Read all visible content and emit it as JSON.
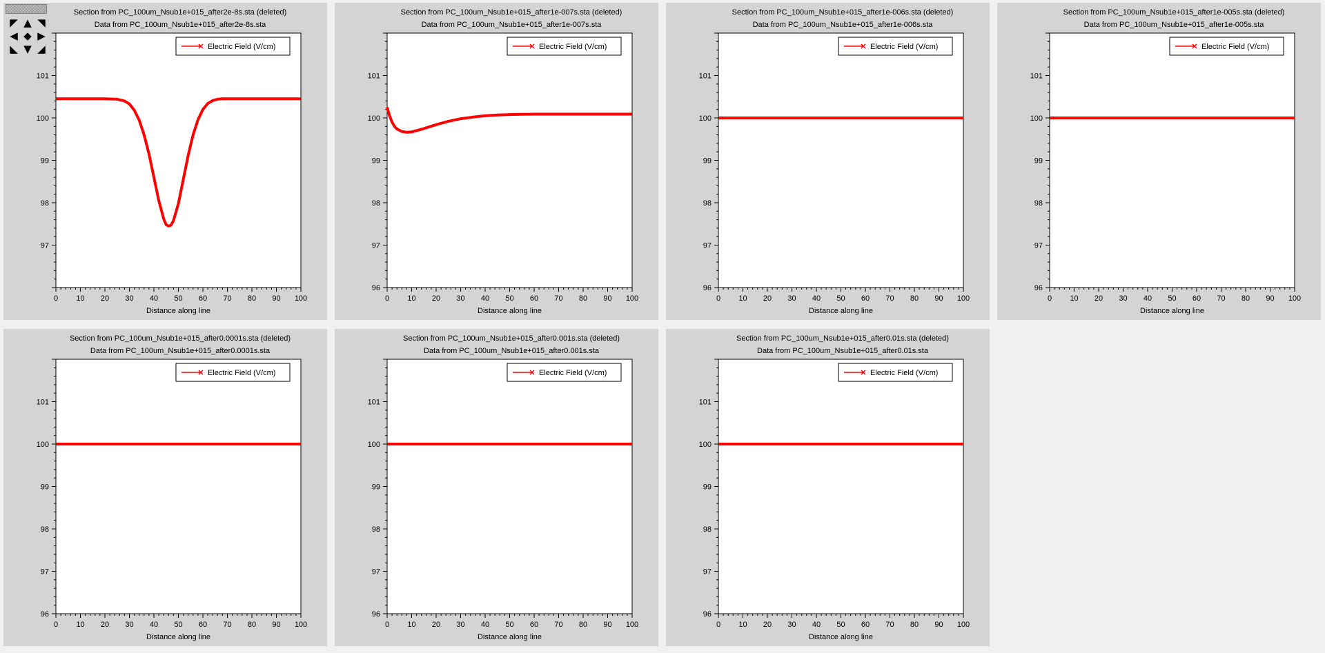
{
  "chart_data": [
    {
      "type": "line",
      "title": "Section from PC_100um_Nsub1e+015_after2e-8s.sta (deleted)",
      "subtitle": "Data from PC_100um_Nsub1e+015_after2e-8s.sta",
      "xlabel": "Distance along line",
      "ylabel": "",
      "xlim": [
        0,
        100
      ],
      "ylim": [
        96,
        102
      ],
      "xticks": [
        0,
        10,
        20,
        30,
        40,
        50,
        60,
        70,
        80,
        90,
        100
      ],
      "yticks": [
        97,
        98,
        99,
        100,
        101
      ],
      "legend": "top-right",
      "series": [
        {
          "name": "Electric Field (V/cm)",
          "color": "#ff0000",
          "x": [
            0,
            10,
            20,
            25,
            28,
            30,
            32,
            34,
            36,
            38,
            40,
            42,
            44,
            45,
            46,
            47,
            48,
            50,
            52,
            54,
            56,
            58,
            60,
            62,
            64,
            66,
            68,
            70,
            75,
            80,
            90,
            100
          ],
          "y": [
            100.45,
            100.45,
            100.45,
            100.44,
            100.4,
            100.33,
            100.18,
            99.95,
            99.6,
            99.15,
            98.6,
            98.05,
            97.62,
            97.48,
            97.45,
            97.47,
            97.58,
            97.98,
            98.55,
            99.12,
            99.6,
            99.96,
            100.2,
            100.34,
            100.41,
            100.44,
            100.45,
            100.45,
            100.45,
            100.45,
            100.45,
            100.45
          ]
        }
      ]
    },
    {
      "type": "line",
      "title": "Section from PC_100um_Nsub1e+015_after1e-007s.sta (deleted)",
      "subtitle": "Data from PC_100um_Nsub1e+015_after1e-007s.sta",
      "xlabel": "Distance along line",
      "ylabel": "",
      "xlim": [
        0,
        100
      ],
      "ylim": [
        96,
        102
      ],
      "xticks": [
        0,
        10,
        20,
        30,
        40,
        50,
        60,
        70,
        80,
        90,
        100
      ],
      "yticks": [
        96,
        97,
        98,
        99,
        100,
        101
      ],
      "legend": "top-right",
      "series": [
        {
          "name": "Electric Field (V/cm)",
          "color": "#ff0000",
          "x": [
            0,
            1,
            2,
            3,
            4,
            6,
            8,
            10,
            12,
            15,
            20,
            25,
            30,
            35,
            40,
            45,
            50,
            60,
            70,
            80,
            90,
            100
          ],
          "y": [
            100.25,
            100.05,
            99.9,
            99.8,
            99.74,
            99.68,
            99.66,
            99.67,
            99.7,
            99.75,
            99.84,
            99.92,
            99.98,
            100.02,
            100.05,
            100.07,
            100.08,
            100.09,
            100.09,
            100.09,
            100.09,
            100.09
          ]
        }
      ]
    },
    {
      "type": "line",
      "title": "Section from PC_100um_Nsub1e+015_after1e-006s.sta (deleted)",
      "subtitle": "Data from PC_100um_Nsub1e+015_after1e-006s.sta",
      "xlabel": "Distance along line",
      "ylabel": "",
      "xlim": [
        0,
        100
      ],
      "ylim": [
        96,
        102
      ],
      "xticks": [
        0,
        10,
        20,
        30,
        40,
        50,
        60,
        70,
        80,
        90,
        100
      ],
      "yticks": [
        96,
        97,
        98,
        99,
        100,
        101
      ],
      "legend": "top-right",
      "series": [
        {
          "name": "Electric Field (V/cm)",
          "color": "#ff0000",
          "x": [
            0,
            10,
            20,
            30,
            40,
            50,
            60,
            70,
            80,
            90,
            100
          ],
          "y": [
            100,
            100,
            100,
            100,
            100,
            100,
            100,
            100,
            100,
            100,
            100
          ]
        }
      ]
    },
    {
      "type": "line",
      "title": "Section from PC_100um_Nsub1e+015_after1e-005s.sta (deleted)",
      "subtitle": "Data from PC_100um_Nsub1e+015_after1e-005s.sta",
      "xlabel": "Distance along line",
      "ylabel": "",
      "xlim": [
        0,
        100
      ],
      "ylim": [
        96,
        102
      ],
      "xticks": [
        0,
        10,
        20,
        30,
        40,
        50,
        60,
        70,
        80,
        90,
        100
      ],
      "yticks": [
        96,
        97,
        98,
        99,
        100,
        101
      ],
      "legend": "top-right",
      "series": [
        {
          "name": "Electric Field (V/cm)",
          "color": "#ff0000",
          "x": [
            0,
            10,
            20,
            30,
            40,
            50,
            60,
            70,
            80,
            90,
            100
          ],
          "y": [
            100,
            100,
            100,
            100,
            100,
            100,
            100,
            100,
            100,
            100,
            100
          ]
        }
      ]
    },
    {
      "type": "line",
      "title": "Section from PC_100um_Nsub1e+015_after0.0001s.sta (deleted)",
      "subtitle": "Data from PC_100um_Nsub1e+015_after0.0001s.sta",
      "xlabel": "Distance along line",
      "ylabel": "",
      "xlim": [
        0,
        100
      ],
      "ylim": [
        96,
        102
      ],
      "xticks": [
        0,
        10,
        20,
        30,
        40,
        50,
        60,
        70,
        80,
        90,
        100
      ],
      "yticks": [
        96,
        97,
        98,
        99,
        100,
        101
      ],
      "legend": "top-right",
      "series": [
        {
          "name": "Electric Field (V/cm)",
          "color": "#ff0000",
          "x": [
            0,
            10,
            20,
            30,
            40,
            50,
            60,
            70,
            80,
            90,
            100
          ],
          "y": [
            100,
            100,
            100,
            100,
            100,
            100,
            100,
            100,
            100,
            100,
            100
          ]
        }
      ]
    },
    {
      "type": "line",
      "title": "Section from PC_100um_Nsub1e+015_after0.001s.sta (deleted)",
      "subtitle": "Data from PC_100um_Nsub1e+015_after0.001s.sta",
      "xlabel": "Distance along line",
      "ylabel": "",
      "xlim": [
        0,
        100
      ],
      "ylim": [
        96,
        102
      ],
      "xticks": [
        0,
        10,
        20,
        30,
        40,
        50,
        60,
        70,
        80,
        90,
        100
      ],
      "yticks": [
        96,
        97,
        98,
        99,
        100,
        101
      ],
      "legend": "top-right",
      "series": [
        {
          "name": "Electric Field (V/cm)",
          "color": "#ff0000",
          "x": [
            0,
            10,
            20,
            30,
            40,
            50,
            60,
            70,
            80,
            90,
            100
          ],
          "y": [
            100,
            100,
            100,
            100,
            100,
            100,
            100,
            100,
            100,
            100,
            100
          ]
        }
      ]
    },
    {
      "type": "line",
      "title": "Section from PC_100um_Nsub1e+015_after0.01s.sta (deleted)",
      "subtitle": "Data from PC_100um_Nsub1e+015_after0.01s.sta",
      "xlabel": "Distance along line",
      "ylabel": "",
      "xlim": [
        0,
        100
      ],
      "ylim": [
        96,
        102
      ],
      "xticks": [
        0,
        10,
        20,
        30,
        40,
        50,
        60,
        70,
        80,
        90,
        100
      ],
      "yticks": [
        96,
        97,
        98,
        99,
        100,
        101
      ],
      "legend": "top-right",
      "series": [
        {
          "name": "Electric Field (V/cm)",
          "color": "#ff0000",
          "x": [
            0,
            10,
            20,
            30,
            40,
            50,
            60,
            70,
            80,
            90,
            100
          ],
          "y": [
            100,
            100,
            100,
            100,
            100,
            100,
            100,
            100,
            100,
            100,
            100
          ]
        }
      ]
    }
  ],
  "toolbox": {
    "arrows": [
      "◤",
      "▲",
      "◥",
      "◀",
      "◆",
      "▶",
      "◣",
      "▼",
      "◢"
    ]
  }
}
